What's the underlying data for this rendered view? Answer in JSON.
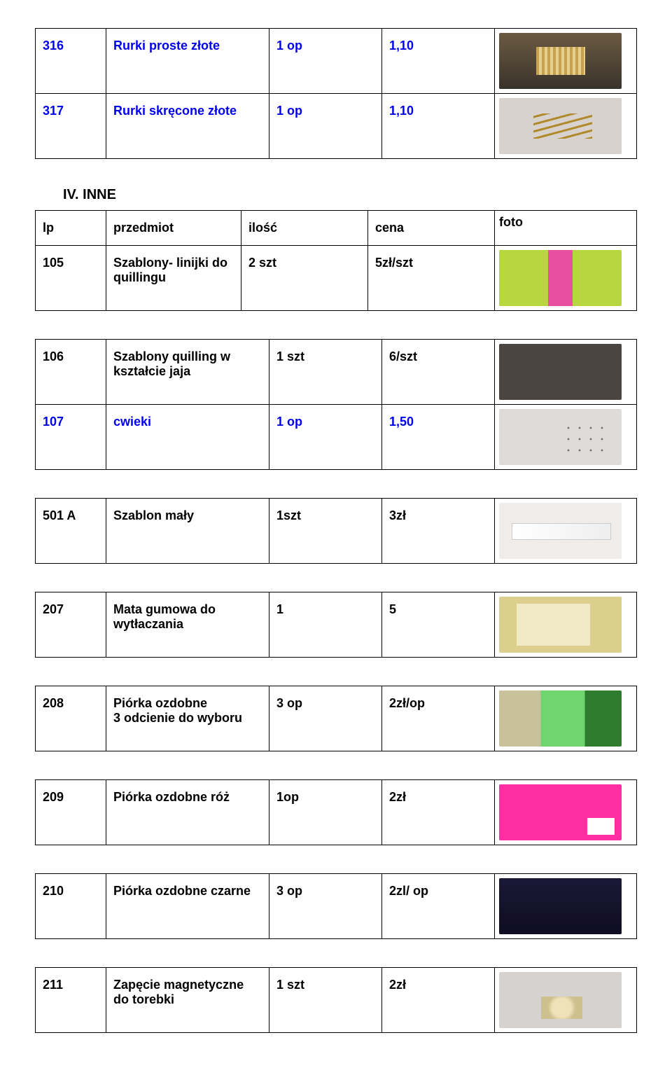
{
  "top_rows": [
    {
      "id": "316",
      "name": "Rurki proste złote",
      "qty": "1 op",
      "price": "1,10",
      "photo_class": "ph-gold-sticks"
    },
    {
      "id": "317",
      "name": "Rurki skręcone złote",
      "qty": "1 op",
      "price": "1,10",
      "photo_class": "ph-gold-twist"
    }
  ],
  "section_label": "IV.       INNE",
  "header": {
    "id": "lp",
    "name": "przedmiot",
    "qty": "ilość",
    "price": "cena",
    "photo": "foto"
  },
  "rows": [
    {
      "id": "105",
      "name": "Szablony- linijki do quillingu",
      "qty": "2 szt",
      "price": "5zł/szt",
      "photo_class": "ph-templates",
      "color": "black"
    },
    {
      "id": "106",
      "name": "Szablony quilling w kształcie jaja",
      "qty": "1 szt",
      "price": "6/szt",
      "photo_class": "ph-egg",
      "color": "black"
    },
    {
      "id": "107",
      "name": "cwieki",
      "qty": "1 op",
      "price": "1,50",
      "photo_class": "ph-cwieki",
      "color": "blue"
    },
    {
      "id": "501 A",
      "name": "Szablon mały",
      "qty": "1szt",
      "price": "3zł",
      "photo_class": "ph-ruler",
      "color": "black"
    },
    {
      "id": "207",
      "name": "Mata gumowa do wytłaczania",
      "qty": "1",
      "price": "5",
      "photo_class": "ph-mat",
      "color": "black"
    },
    {
      "id": "208",
      "name": "Piórka ozdobne\n3 odcienie do wyboru",
      "qty": "3 op",
      "price": "2zł/op",
      "photo_class": "ph-feathers",
      "color": "black"
    },
    {
      "id": "209",
      "name": "Piórka ozdobne róż",
      "qty": "1op",
      "price": "2zł",
      "photo_class": "ph-pink",
      "color": "black"
    },
    {
      "id": "210",
      "name": "Piórka ozdobne czarne",
      "qty": "3 op",
      "price": "2zl/ op",
      "photo_class": "ph-black",
      "color": "black"
    },
    {
      "id": "211",
      "name": "Zapęcie magnetyczne do torebki",
      "qty": "1 szt",
      "price": "2zł",
      "photo_class": "ph-magnet",
      "color": "black"
    }
  ]
}
